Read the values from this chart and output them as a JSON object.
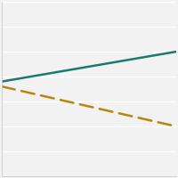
{
  "solid_line": {
    "x": [
      2001,
      2018
    ],
    "y": [
      0.38,
      0.5
    ],
    "color": "#1a7a6e",
    "linewidth": 1.8
  },
  "dashed_line": {
    "x": [
      2001,
      2018
    ],
    "y": [
      0.36,
      0.2
    ],
    "color": "#b8860b",
    "linewidth": 1.8,
    "dashes": [
      6,
      3
    ]
  },
  "ylim": [
    0,
    0.7
  ],
  "xlim": [
    2001,
    2018
  ],
  "yticks": [
    0,
    0.1,
    0.2,
    0.3,
    0.4,
    0.5,
    0.6,
    0.7
  ],
  "background_color": "#f2f2f2",
  "grid_color": "#ffffff",
  "border_color": "#cccccc"
}
